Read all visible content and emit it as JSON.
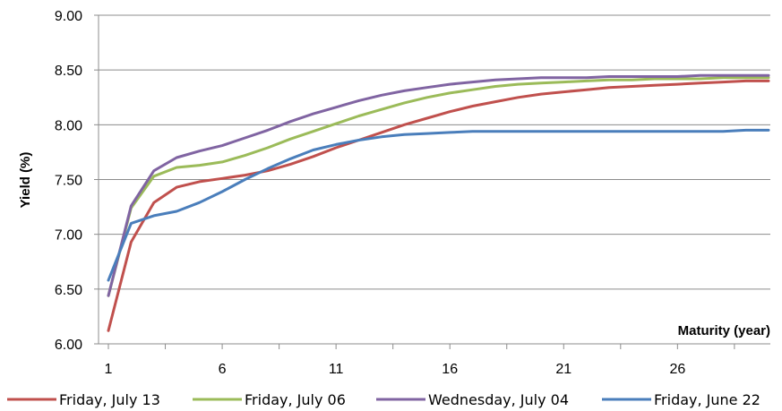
{
  "chart_data": {
    "type": "line",
    "ylabel": "Yield (%)",
    "xlabel": "Maturity (year)",
    "xlim": [
      1,
      30
    ],
    "ylim": [
      6.0,
      9.0
    ],
    "x_ticks": [
      "1",
      "6",
      "11",
      "16",
      "21",
      "26"
    ],
    "y_ticks": [
      "6.00",
      "6.50",
      "7.00",
      "7.50",
      "8.00",
      "8.50",
      "9.00"
    ],
    "grid": "horizontal",
    "legend_position": "bottom",
    "x": [
      1,
      2,
      3,
      4,
      5,
      6,
      7,
      8,
      9,
      10,
      11,
      12,
      13,
      14,
      15,
      16,
      17,
      18,
      19,
      20,
      21,
      22,
      23,
      24,
      25,
      26,
      27,
      28,
      29,
      30
    ],
    "series": [
      {
        "name": "Friday, July 13",
        "color": "#c0504d",
        "values": [
          6.12,
          6.93,
          7.29,
          7.43,
          7.48,
          7.51,
          7.54,
          7.58,
          7.64,
          7.71,
          7.79,
          7.86,
          7.93,
          8.0,
          8.06,
          8.12,
          8.17,
          8.21,
          8.25,
          8.28,
          8.3,
          8.32,
          8.34,
          8.35,
          8.36,
          8.37,
          8.38,
          8.39,
          8.4,
          8.4
        ]
      },
      {
        "name": "Friday, July 06",
        "color": "#9bbb59",
        "values": [
          6.44,
          7.24,
          7.53,
          7.61,
          7.63,
          7.66,
          7.72,
          7.79,
          7.87,
          7.94,
          8.01,
          8.08,
          8.14,
          8.2,
          8.25,
          8.29,
          8.32,
          8.35,
          8.37,
          8.38,
          8.39,
          8.4,
          8.41,
          8.41,
          8.42,
          8.42,
          8.42,
          8.43,
          8.43,
          8.43
        ]
      },
      {
        "name": "Wednesday, July 04",
        "color": "#8064a2",
        "values": [
          6.44,
          7.26,
          7.58,
          7.7,
          7.76,
          7.81,
          7.88,
          7.95,
          8.03,
          8.1,
          8.16,
          8.22,
          8.27,
          8.31,
          8.34,
          8.37,
          8.39,
          8.41,
          8.42,
          8.43,
          8.43,
          8.43,
          8.44,
          8.44,
          8.44,
          8.44,
          8.45,
          8.45,
          8.45,
          8.45
        ]
      },
      {
        "name": "Friday, June 22",
        "color": "#4a7ebb",
        "values": [
          6.58,
          7.1,
          7.17,
          7.21,
          7.29,
          7.39,
          7.5,
          7.6,
          7.69,
          7.77,
          7.82,
          7.86,
          7.89,
          7.91,
          7.92,
          7.93,
          7.94,
          7.94,
          7.94,
          7.94,
          7.94,
          7.94,
          7.94,
          7.94,
          7.94,
          7.94,
          7.94,
          7.94,
          7.95,
          7.95
        ]
      }
    ]
  }
}
